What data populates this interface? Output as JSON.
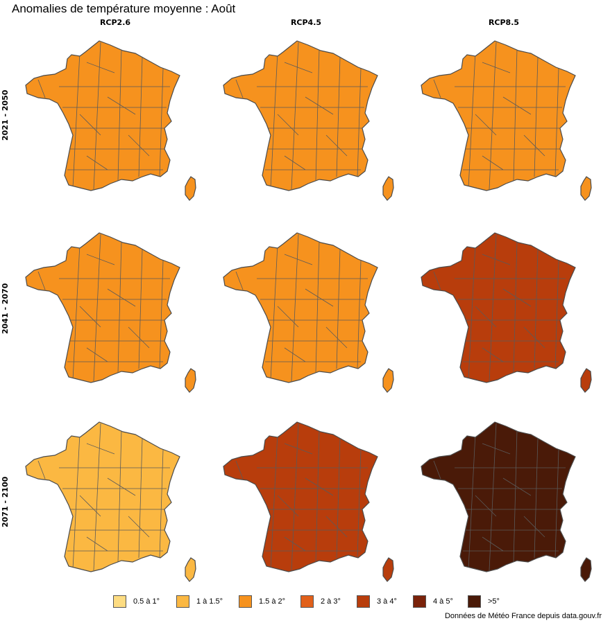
{
  "title": "Anomalies de température moyenne : Août",
  "columns": [
    "RCP2.6",
    "RCP4.5",
    "RCP8.5"
  ],
  "rows": [
    "2021 - 2050",
    "2041 - 2070",
    "2071 - 2100"
  ],
  "legend": [
    {
      "label": "0.5 à 1°",
      "color": "#fddc82"
    },
    {
      "label": "1 à 1.5°",
      "color": "#fbb842"
    },
    {
      "label": "1.5 à 2°",
      "color": "#f6921e"
    },
    {
      "label": "2 à 3°",
      "color": "#e1601a"
    },
    {
      "label": "3 à 4°",
      "color": "#b83d0c"
    },
    {
      "label": "4 à 5°",
      "color": "#7a220a"
    },
    {
      "label": ">5°",
      "color": "#4a1a08"
    }
  ],
  "maps": [
    {
      "scenario": "RCP2.6",
      "period": "2021 - 2050",
      "dominant_class": "1.5 à 2°"
    },
    {
      "scenario": "RCP4.5",
      "period": "2021 - 2050",
      "dominant_class": "1.5 à 2°"
    },
    {
      "scenario": "RCP8.5",
      "period": "2021 - 2050",
      "dominant_class": "1.5 à 2°"
    },
    {
      "scenario": "RCP2.6",
      "period": "2041 - 2070",
      "dominant_class": "1.5 à 2°"
    },
    {
      "scenario": "RCP4.5",
      "period": "2041 - 2070",
      "dominant_class": "1.5 à 2°"
    },
    {
      "scenario": "RCP8.5",
      "period": "2041 - 2070",
      "dominant_class": "3 à 4°"
    },
    {
      "scenario": "RCP2.6",
      "period": "2071 - 2100",
      "dominant_class": "1 à 1.5°"
    },
    {
      "scenario": "RCP4.5",
      "period": "2071 - 2100",
      "dominant_class": "3 à 4°"
    },
    {
      "scenario": "RCP8.5",
      "period": "2071 - 2100",
      "dominant_class": ">5°"
    }
  ],
  "source": "Données de Météo France depuis data.gouv.fr"
}
